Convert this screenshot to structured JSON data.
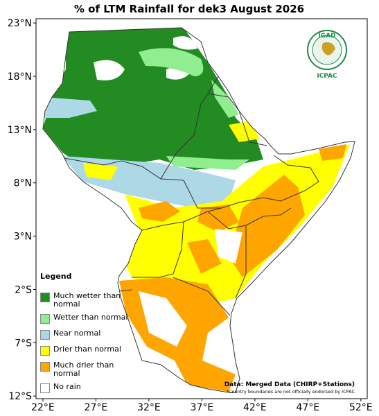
{
  "title": "% of LTM Rainfall for dek3 August 2026",
  "map": {
    "xlim": [
      21.35,
      52.6
    ],
    "ylim": [
      -12.25,
      23.4
    ],
    "xticks": [
      {
        "value": 22,
        "label": "22°E"
      },
      {
        "value": 27,
        "label": "27°E"
      },
      {
        "value": 32,
        "label": "32°E"
      },
      {
        "value": 37,
        "label": "37°E"
      },
      {
        "value": 42,
        "label": "42°E"
      },
      {
        "value": 47,
        "label": "47°E"
      },
      {
        "value": 52,
        "label": "52°E"
      }
    ],
    "yticks": [
      {
        "value": 23,
        "label": "23°N"
      },
      {
        "value": 18,
        "label": "18°N"
      },
      {
        "value": 13,
        "label": "13°N"
      },
      {
        "value": 8,
        "label": "8°N"
      },
      {
        "value": 3,
        "label": "3°N"
      },
      {
        "value": -2,
        "label": "2°S"
      },
      {
        "value": -7,
        "label": "7°S"
      },
      {
        "value": -12,
        "label": "12°S"
      }
    ]
  },
  "legend": {
    "title": "Legend",
    "items": [
      {
        "label": "Much wetter than normal",
        "color": "#228b22"
      },
      {
        "label": "Wetter than normal",
        "color": "#90ee90"
      },
      {
        "label": "Near normal",
        "color": "#add8e6"
      },
      {
        "label": "Drier than normal",
        "color": "#ffff00"
      },
      {
        "label": "Much drier than normal",
        "color": "#ffa500"
      },
      {
        "label": "No rain",
        "color": "#ffffff"
      }
    ]
  },
  "logo": {
    "name": "IGAD",
    "org": "ICPAC"
  },
  "credit": "Data: Merged Data (CHIRP+Stations)",
  "note": "*Country boundaries are not officially endorsed by ICPAC"
}
